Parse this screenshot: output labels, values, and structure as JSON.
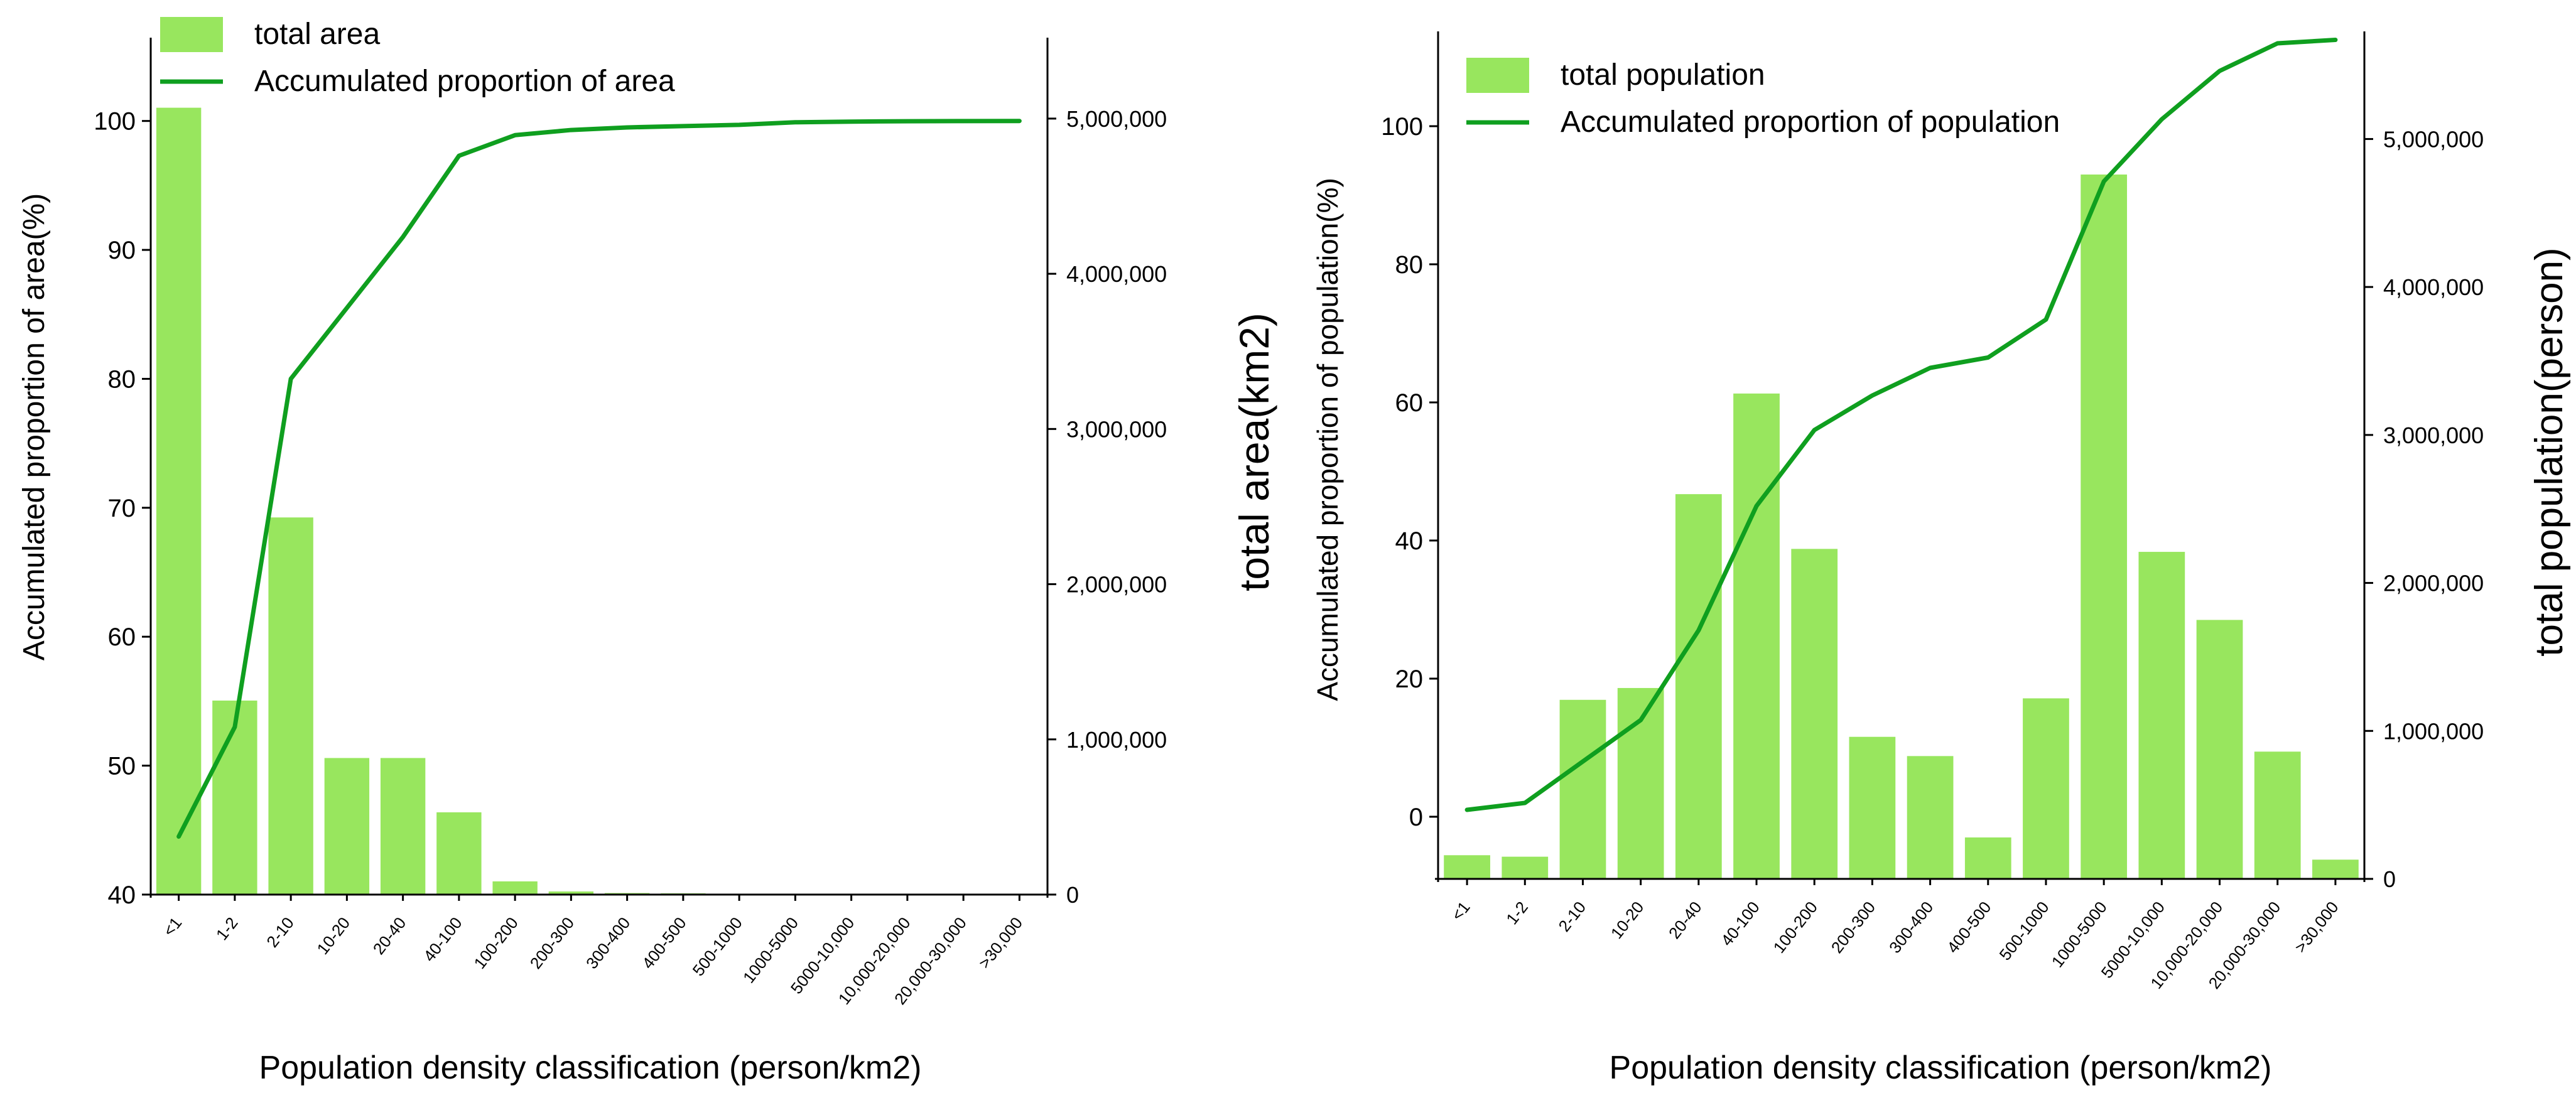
{
  "colors": {
    "bar": "#98e65e",
    "line": "#0f9f1f",
    "axis": "#000000"
  },
  "categories": [
    "<1",
    "1-2",
    "2-10",
    "10-20",
    "20-40",
    "40-100",
    "100-200",
    "200-300",
    "300-400",
    "400-500",
    "500-1000",
    "1000-5000",
    "5000-10,000",
    "10,000-20,000",
    "20,000-30,000",
    ">30,000"
  ],
  "chart_data": [
    {
      "type": "bar+line",
      "xlabel": "Population density classification (person/km2)",
      "ylabel_left": "Accumulated proportion of area(%)",
      "ylabel_right": "total area(km2)",
      "ylim_left": [
        40,
        105
      ],
      "ylim_right": [
        0,
        5400000
      ],
      "left_ticks": [
        "100",
        "90",
        "80",
        "70",
        "60",
        "50",
        "40"
      ],
      "left_tick_values": [
        100,
        90,
        80,
        70,
        60,
        50,
        40
      ],
      "right_ticks": [
        "5,000,000",
        "4,000,000",
        "3,000,000",
        "2,000,000",
        "1,000,000",
        "0"
      ],
      "right_tick_values": [
        5000000,
        4000000,
        3000000,
        2000000,
        1000000,
        0
      ],
      "legend": {
        "bar_label": "total area",
        "line_label": "Accumulated proportion of area",
        "placement": "top-left"
      },
      "series": [
        {
          "name": "total area",
          "kind": "bar",
          "axis": "right",
          "values": [
            5070000,
            1250000,
            2430000,
            880000,
            880000,
            530000,
            85000,
            20000,
            10000,
            8000,
            6000,
            4000,
            2000,
            1000,
            500,
            300
          ]
        },
        {
          "name": "Accumulated proportion of area",
          "kind": "line",
          "axis": "left",
          "values": [
            44.5,
            53,
            80,
            85.5,
            91,
            97.3,
            98.9,
            99.3,
            99.5,
            99.6,
            99.7,
            99.9,
            99.95,
            99.98,
            99.99,
            100
          ]
        }
      ]
    },
    {
      "type": "bar+line",
      "xlabel": "Population density classification (person/km2)",
      "ylabel_left": "Accumulated proportion of population(%)",
      "ylabel_right": "total population(person)",
      "ylim_left": [
        -9,
        111
      ],
      "ylim_right": [
        0,
        5600000
      ],
      "left_ticks": [
        "100",
        "80",
        "60",
        "40",
        "20",
        "0"
      ],
      "left_tick_values": [
        100,
        80,
        60,
        40,
        20,
        0
      ],
      "right_ticks": [
        "5,000,000",
        "4,000,000",
        "3,000,000",
        "2,000,000",
        "1,000,000",
        "0"
      ],
      "right_tick_values": [
        5000000,
        4000000,
        3000000,
        2000000,
        1000000,
        0
      ],
      "legend": {
        "bar_label": "total population",
        "line_label": "Accumulated proportion of population",
        "placement": "top-left"
      },
      "series": [
        {
          "name": "total population",
          "kind": "bar",
          "axis": "right",
          "values": [
            160000,
            150000,
            1210000,
            1290000,
            2600000,
            3280000,
            2230000,
            960000,
            830000,
            280000,
            1220000,
            4760000,
            2210000,
            1750000,
            860000,
            130000
          ]
        },
        {
          "name": "Accumulated proportion of population",
          "kind": "line",
          "axis": "left",
          "values": [
            1,
            2,
            8,
            14,
            27,
            45,
            56,
            61,
            65,
            66.5,
            72,
            92,
            101,
            108,
            112,
            112.5
          ]
        }
      ]
    }
  ]
}
